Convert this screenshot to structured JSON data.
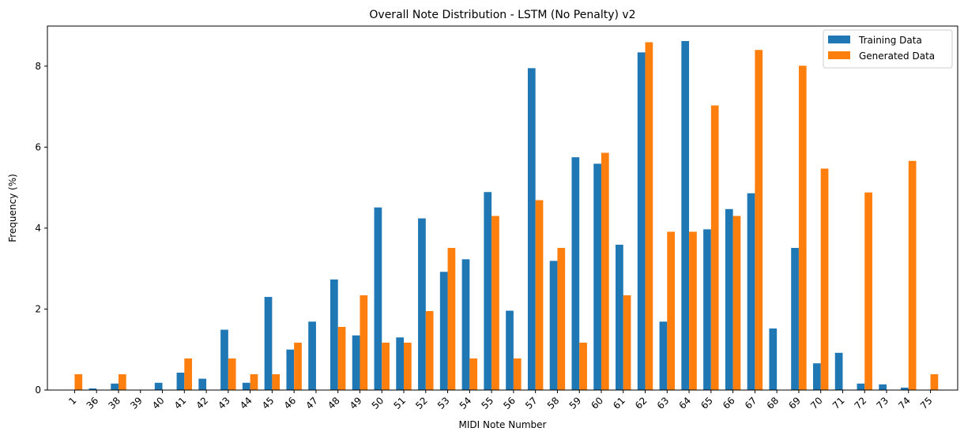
{
  "chart_data": {
    "type": "bar",
    "title": "Overall Note Distribution - LSTM (No Penalty) v2",
    "xlabel": "MIDI Note Number",
    "ylabel": "Frequency (%)",
    "ylim": [
      0,
      8.99
    ],
    "yticks": [
      0,
      2,
      4,
      6,
      8
    ],
    "grid": false,
    "legend_position": "top-right",
    "categories": [
      "1",
      "36",
      "38",
      "39",
      "40",
      "41",
      "42",
      "43",
      "44",
      "45",
      "46",
      "47",
      "48",
      "49",
      "50",
      "51",
      "52",
      "53",
      "54",
      "55",
      "56",
      "57",
      "58",
      "59",
      "60",
      "61",
      "62",
      "63",
      "64",
      "65",
      "66",
      "67",
      "68",
      "69",
      "70",
      "71",
      "72",
      "73",
      "74",
      "75"
    ],
    "series": [
      {
        "name": "Training Data",
        "color": "#1f77b4",
        "values": [
          0,
          0.04,
          0.16,
          0,
          0.18,
          0.43,
          0.28,
          1.49,
          0.18,
          2.3,
          1.0,
          1.69,
          2.73,
          1.35,
          4.51,
          1.3,
          4.24,
          2.92,
          3.23,
          4.89,
          1.96,
          7.95,
          3.19,
          5.75,
          5.59,
          3.59,
          8.34,
          1.69,
          8.62,
          3.97,
          4.47,
          4.86,
          1.52,
          3.51,
          0.66,
          0.92,
          0.16,
          0.14,
          0.06,
          0
        ]
      },
      {
        "name": "Generated Data",
        "color": "#ff7f0e",
        "values": [
          0.39,
          0,
          0.39,
          0,
          0,
          0.78,
          0,
          0.78,
          0.39,
          0.39,
          1.17,
          0,
          1.56,
          2.34,
          1.17,
          1.17,
          1.95,
          3.51,
          0.78,
          4.3,
          0.78,
          4.69,
          3.51,
          1.17,
          5.86,
          2.34,
          8.59,
          3.91,
          3.91,
          7.03,
          4.3,
          8.4,
          0,
          8.01,
          5.47,
          0,
          4.88,
          0,
          5.66,
          0.39
        ]
      }
    ]
  }
}
